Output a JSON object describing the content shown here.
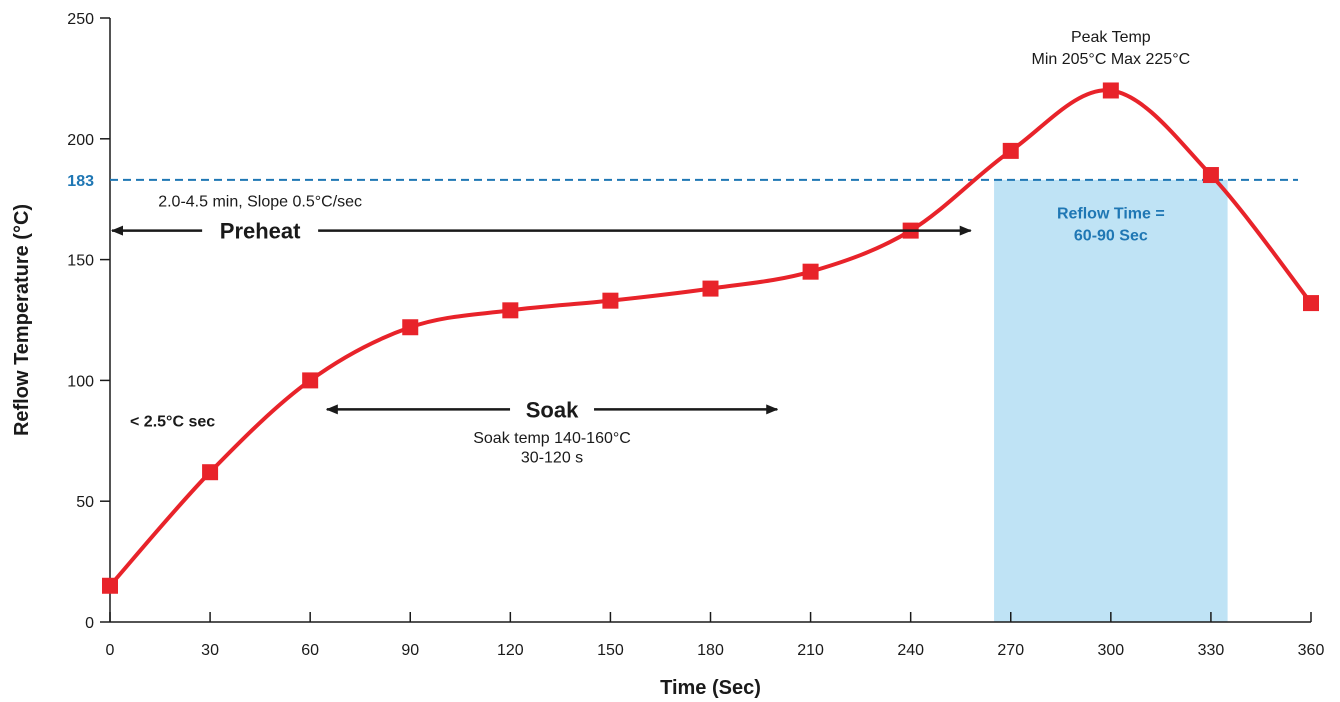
{
  "chart_data": {
    "type": "line",
    "title": "",
    "xlabel": "Time (Sec)",
    "ylabel": "Reflow Temperature (°C)",
    "xlim": [
      0,
      360
    ],
    "ylim": [
      0,
      250
    ],
    "x_ticks": [
      "0",
      "30",
      "60",
      "90",
      "120",
      "150",
      "180",
      "210",
      "240",
      "270",
      "300",
      "330",
      "360"
    ],
    "y_ticks": [
      "0",
      "50",
      "100",
      "150",
      "200",
      "250"
    ],
    "grid": false,
    "series": [
      {
        "x": [
          0,
          30,
          60,
          90,
          120,
          150,
          180,
          210,
          240,
          270,
          300,
          330,
          360
        ],
        "y": [
          15,
          62,
          100,
          122,
          129,
          133,
          138,
          145,
          162,
          195,
          220,
          185,
          132
        ]
      }
    ],
    "reference_line": {
      "y": 183,
      "label": "183",
      "style": "dashed",
      "color": "#1f77b4"
    },
    "reflow_region": {
      "x_start": 265,
      "x_end": 335,
      "color": "#bfe3f5"
    },
    "annotations": {
      "peak_line1": "Peak Temp",
      "peak_line2": "Min 205°C Max 225°C",
      "preheat_note": "2.0-4.5 min, Slope 0.5°C/sec",
      "preheat_label": "Preheat",
      "preheat_range": [
        0,
        258
      ],
      "soak_label": "Soak",
      "soak_range": [
        65,
        200
      ],
      "soak_line1": "Soak temp 140-160°C",
      "soak_line2": "30-120 s",
      "ramp_label": "< 2.5°C sec",
      "reflow_line1": "Reflow Time =",
      "reflow_line2": "60-90 Sec"
    },
    "colors": {
      "line": "#e8232a",
      "marker": "#e8232a",
      "reference": "#1f77b4",
      "reflow_fill": "#bfe3f5",
      "arrow": "#1a1a1a"
    }
  }
}
